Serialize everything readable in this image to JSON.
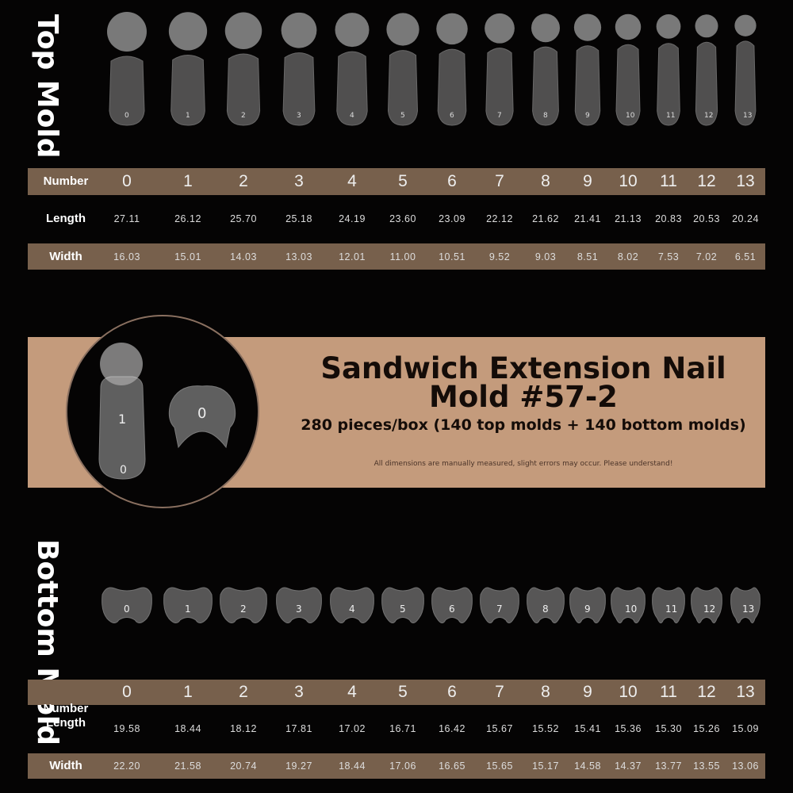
{
  "top": {
    "title": "Top Mold",
    "table": {
      "number_label": "Number",
      "length_label": "Length",
      "width_label": "Width",
      "numbers": [
        "0",
        "1",
        "2",
        "3",
        "4",
        "5",
        "6",
        "7",
        "8",
        "9",
        "10",
        "11",
        "12",
        "13"
      ],
      "lengths": [
        "27.11",
        "26.12",
        "25.70",
        "25.18",
        "24.19",
        "23.60",
        "23.09",
        "22.12",
        "21.62",
        "21.41",
        "21.13",
        "20.83",
        "20.53",
        "20.24"
      ],
      "widths": [
        "16.03",
        "15.01",
        "14.03",
        "13.03",
        "12.01",
        "11.00",
        "10.51",
        "9.52",
        "9.03",
        "8.51",
        "8.02",
        "7.53",
        "7.02",
        "6.51"
      ]
    }
  },
  "banner": {
    "title_line1": "Sandwich Extension Nail",
    "title_line2": "Mold #57-2",
    "subtitle": "280 pieces/box (140 top molds + 140 bottom molds)",
    "disclaimer": "All dimensions are manually measured, slight errors may occur. Please understand!",
    "colors": {
      "band": "#c49b7c",
      "table_row": "#77604c",
      "background": "#050404"
    }
  },
  "bottom": {
    "title": "Bottom Mold",
    "table": {
      "number_label": "Number",
      "length_label": "Length",
      "width_label": "Width",
      "numbers": [
        "0",
        "1",
        "2",
        "3",
        "4",
        "5",
        "6",
        "7",
        "8",
        "9",
        "10",
        "11",
        "12",
        "13"
      ],
      "lengths": [
        "19.58",
        "18.44",
        "18.12",
        "17.81",
        "17.02",
        "16.71",
        "16.42",
        "15.67",
        "15.52",
        "15.41",
        "15.36",
        "15.30",
        "15.26",
        "15.09"
      ],
      "widths": [
        "22.20",
        "21.58",
        "20.74",
        "19.27",
        "18.44",
        "17.06",
        "16.65",
        "15.65",
        "15.17",
        "14.58",
        "14.37",
        "13.77",
        "13.55",
        "13.06"
      ]
    }
  }
}
